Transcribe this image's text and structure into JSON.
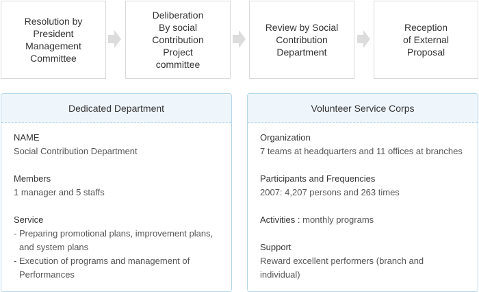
{
  "flow": {
    "steps": [
      "Resolution by\nPresident\nManagement\nCommittee",
      "Deliberation\nBy social\nContribution\nProject\ncommittee",
      "Review by Social\nContribution\nDepartment",
      "Reception\nof External\nProposal"
    ],
    "arrow_icon": "chevron-right-icon",
    "colors": {
      "box_border": "#d9d9d9",
      "arrow": "#dcdcdc"
    }
  },
  "dedicated": {
    "title": "Dedicated Department",
    "name_label": "NAME",
    "name_value": "Social Contribution Department",
    "members_label": "Members",
    "members_value": "1 manager and 5 staffs",
    "service_label": "Service",
    "service_items": [
      "- Preparing promotional plans, improvement plans, and system plans",
      "- Execution of programs and management of Performances"
    ]
  },
  "volunteer": {
    "title": "Volunteer Service Corps",
    "org_label": "Organization",
    "org_value": "7 teams at headquarters and 11 offices at branches",
    "participants_label": "Participants and Frequencies",
    "participants_value": "2007: 4,207 persons and 263 times",
    "activities_label": "Activities :",
    "activities_value": " monthly programs",
    "support_label": "Support",
    "support_value": "Reward excellent performers  (branch and individual)"
  },
  "colors": {
    "panel_border": "#b5d6ea",
    "panel_head_bg": "#eef5fb"
  }
}
